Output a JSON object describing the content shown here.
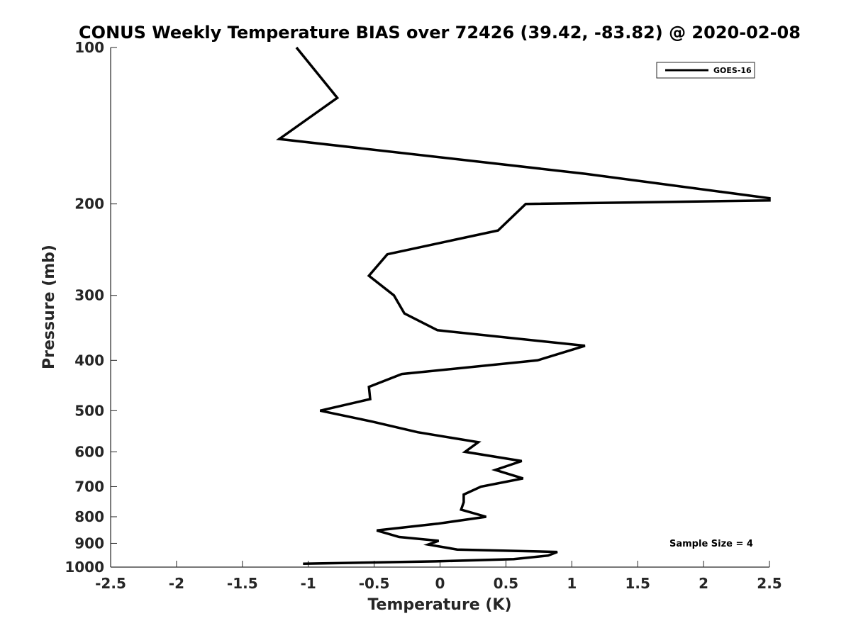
{
  "chart_data": {
    "type": "line",
    "title": "CONUS Weekly Temperature BIAS over 72426 (39.42, -83.82) @ 2020-02-08",
    "xlabel": "Temperature (K)",
    "ylabel": "Pressure (mb)",
    "xlim": [
      -2.5,
      2.5
    ],
    "ylim": [
      100,
      1000
    ],
    "y_scale": "log",
    "y_reversed": true,
    "x_ticks": [
      -2.5,
      -2,
      -1.5,
      -1,
      -0.5,
      0,
      0.5,
      1,
      1.5,
      2,
      2.5
    ],
    "x_tick_labels": [
      "-2.5",
      "-2",
      "-1.5",
      "-1",
      "-0.5",
      "0",
      "0.5",
      "1",
      "1.5",
      "2",
      "2.5"
    ],
    "y_ticks": [
      100,
      200,
      300,
      400,
      500,
      600,
      700,
      800,
      900,
      1000
    ],
    "y_tick_labels": [
      "100",
      "200",
      "300",
      "400",
      "500",
      "600",
      "700",
      "800",
      "900",
      "1000"
    ],
    "grid": false,
    "legend_position": "top-right",
    "annotation": "Sample Size = 4",
    "series": [
      {
        "name": "GOES-16",
        "color": "#000000",
        "points": [
          {
            "x": -1.09,
            "y": 100
          },
          {
            "x": -0.78,
            "y": 125
          },
          {
            "x": -1.22,
            "y": 150
          },
          {
            "x": 1.1,
            "y": 175
          },
          {
            "x": 2.5,
            "y": 195
          },
          {
            "x": 2.5,
            "y": 197
          },
          {
            "x": 0.65,
            "y": 200
          },
          {
            "x": 0.44,
            "y": 225
          },
          {
            "x": -0.4,
            "y": 250
          },
          {
            "x": -0.54,
            "y": 275
          },
          {
            "x": -0.35,
            "y": 300
          },
          {
            "x": -0.27,
            "y": 325
          },
          {
            "x": -0.02,
            "y": 350
          },
          {
            "x": 1.1,
            "y": 375
          },
          {
            "x": 0.74,
            "y": 400
          },
          {
            "x": -0.29,
            "y": 425
          },
          {
            "x": -0.54,
            "y": 450
          },
          {
            "x": -0.53,
            "y": 475
          },
          {
            "x": -0.91,
            "y": 500
          },
          {
            "x": -0.51,
            "y": 525
          },
          {
            "x": -0.17,
            "y": 550
          },
          {
            "x": 0.29,
            "y": 575
          },
          {
            "x": 0.19,
            "y": 600
          },
          {
            "x": 0.62,
            "y": 625
          },
          {
            "x": 0.42,
            "y": 650
          },
          {
            "x": 0.63,
            "y": 675
          },
          {
            "x": 0.31,
            "y": 700
          },
          {
            "x": 0.18,
            "y": 725
          },
          {
            "x": 0.18,
            "y": 750
          },
          {
            "x": 0.16,
            "y": 775
          },
          {
            "x": 0.35,
            "y": 800
          },
          {
            "x": -0.02,
            "y": 825
          },
          {
            "x": -0.48,
            "y": 850
          },
          {
            "x": -0.31,
            "y": 875
          },
          {
            "x": -0.01,
            "y": 890
          },
          {
            "x": -0.09,
            "y": 905
          },
          {
            "x": 0.13,
            "y": 925
          },
          {
            "x": 0.89,
            "y": 935
          },
          {
            "x": 0.82,
            "y": 950
          },
          {
            "x": 0.56,
            "y": 965
          },
          {
            "x": -0.03,
            "y": 975
          },
          {
            "x": -1.04,
            "y": 985
          }
        ]
      }
    ]
  }
}
